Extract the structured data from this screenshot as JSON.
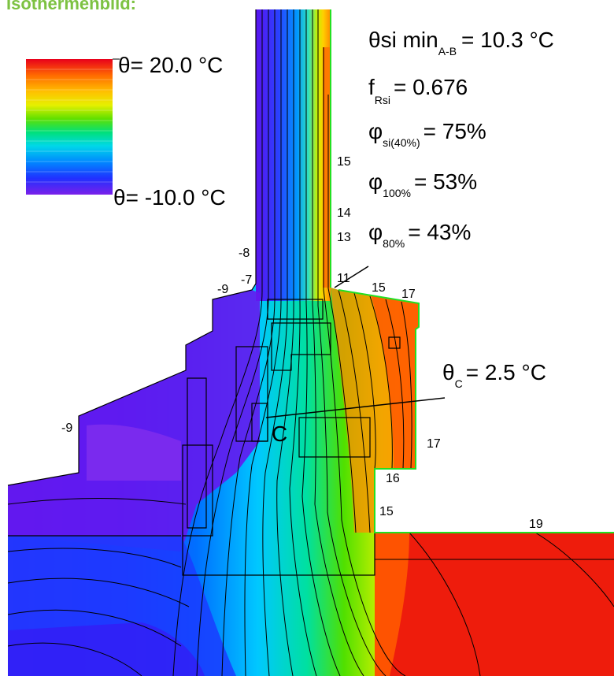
{
  "title": "Isothermenbild:",
  "legend": {
    "max_label": "θ= 20.0 °C",
    "min_label": "θ= -10.0 °C",
    "colors": [
      "#e0001a",
      "#f03a10",
      "#ff7f00",
      "#ffb800",
      "#f6e800",
      "#b8f000",
      "#40e000",
      "#00e08a",
      "#00d8e0",
      "#0090ff",
      "#1838ff",
      "#5a20f0",
      "#8a20e8"
    ]
  },
  "results": {
    "theta_si_min": {
      "symbol": "θ",
      "main": "si min",
      "sub": "A-B",
      "value": "= 10.3 °C"
    },
    "f_rsi": {
      "symbol": "f",
      "sub": "Rsi",
      "value": "= 0.676"
    },
    "phi_si40": {
      "symbol": "φ",
      "sub": "si(40%)",
      "value": "= 75%"
    },
    "phi_100": {
      "symbol": "φ",
      "sub": "100%",
      "value": "= 53%"
    },
    "phi_80": {
      "symbol": "φ",
      "sub": "80%",
      "value": "= 43%"
    }
  },
  "point_c": {
    "symbol": "θ",
    "sub": "C",
    "value": "= 2.5 °C",
    "marker": "C"
  },
  "isotherm_labels": [
    "15",
    "14",
    "13",
    "-8",
    "-7",
    "-9",
    "11",
    "15",
    "17",
    "-9",
    "17",
    "16",
    "15",
    "19"
  ]
}
